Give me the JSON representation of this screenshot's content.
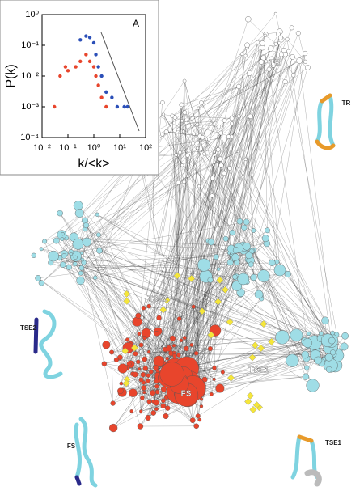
{
  "chart_data": {
    "type": "scatter",
    "panel_label": "A",
    "xlabel": "k/<k>",
    "ylabel": "P(k)",
    "xscale": "log",
    "yscale": "log",
    "grid": false,
    "xlim": [
      0.01,
      100
    ],
    "ylim": [
      0.0001,
      1
    ],
    "xticks": [
      {
        "value": 0.01,
        "label": "10⁻²"
      },
      {
        "value": 0.1,
        "label": "10⁻¹"
      },
      {
        "value": 1,
        "label": "10⁰"
      },
      {
        "value": 10,
        "label": "10¹"
      },
      {
        "value": 100,
        "label": "10²"
      }
    ],
    "yticks": [
      {
        "value": 0.0001,
        "label": "10⁻⁴"
      },
      {
        "value": 0.001,
        "label": "10⁻³"
      },
      {
        "value": 0.01,
        "label": "10⁻²"
      },
      {
        "value": 0.1,
        "label": "10⁻¹"
      },
      {
        "value": 1,
        "label": "10⁰"
      }
    ],
    "series": [
      {
        "color": "#2b4fb8",
        "x": [
          0.3,
          0.5,
          0.7,
          1,
          1.2,
          1.5,
          2,
          3,
          5,
          8,
          15,
          20
        ],
        "values": [
          0.15,
          0.2,
          0.18,
          0.12,
          0.05,
          0.02,
          0.01,
          0.003,
          0.002,
          0.001,
          0.001,
          0.001
        ]
      },
      {
        "color": "#e8452c",
        "x": [
          0.03,
          0.05,
          0.08,
          0.1,
          0.2,
          0.3,
          0.5,
          0.7,
          1,
          1.2,
          1.5,
          2,
          3
        ],
        "values": [
          0.001,
          0.01,
          0.02,
          0.015,
          0.02,
          0.03,
          0.05,
          0.03,
          0.02,
          0.01,
          0.005,
          0.002,
          0.001
        ]
      }
    ]
  },
  "network": {
    "cluster_labels": [
      "TR",
      "TSE2",
      "TSE1",
      "FS"
    ],
    "structure_labels": [
      "TR",
      "TSE2",
      "FS",
      "TSE1"
    ]
  }
}
